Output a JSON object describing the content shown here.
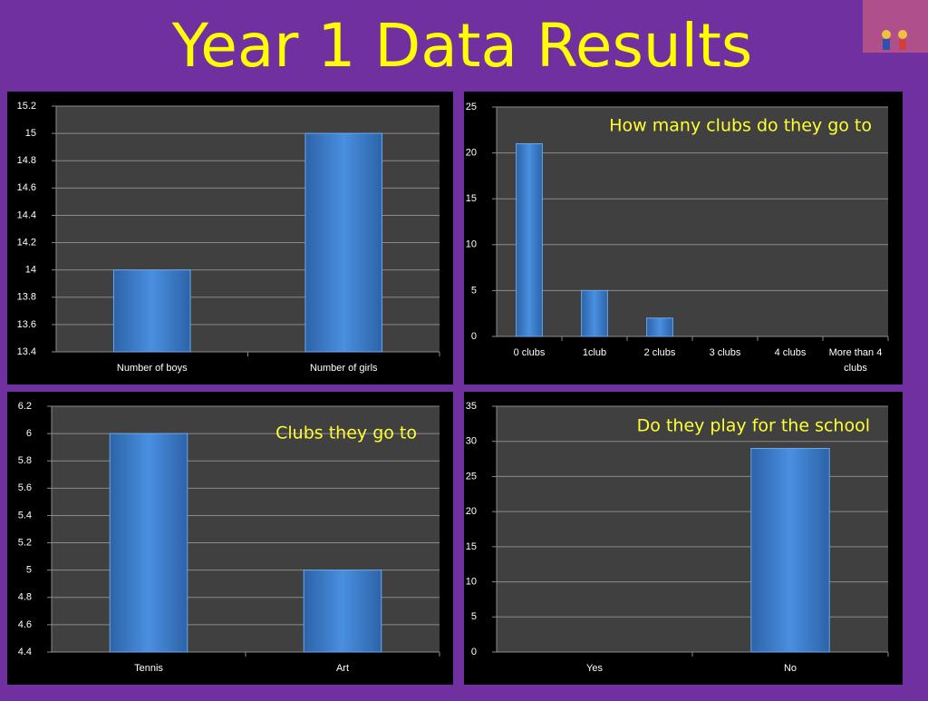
{
  "title": "Year 1 Data Results",
  "chart_data": [
    {
      "type": "bar",
      "categories": [
        "Number of boys",
        "Number of girls"
      ],
      "values": [
        14,
        15
      ],
      "color": "#3d80d2",
      "ylim": [
        13.4,
        15.2
      ],
      "yticks": [
        13.4,
        13.6,
        13.8,
        14,
        14.2,
        14.4,
        14.6,
        14.8,
        15,
        15.2
      ],
      "grid": true
    },
    {
      "type": "bar",
      "title": "How many clubs do they go to",
      "categories": [
        "0 clubs",
        "1club",
        "2 clubs",
        "3 clubs",
        "4 clubs",
        "More than 4 clubs"
      ],
      "values": [
        21,
        5,
        2,
        0,
        0,
        0
      ],
      "color": "#3d80d2",
      "ylim": [
        0,
        25
      ],
      "yticks": [
        0,
        5,
        10,
        15,
        20,
        25
      ],
      "grid": true
    },
    {
      "type": "bar",
      "title": "Clubs they go to",
      "categories": [
        "Tennis",
        "Art"
      ],
      "values": [
        6,
        5
      ],
      "color": "#3d80d2",
      "ylim": [
        4.4,
        6.2
      ],
      "yticks": [
        4.4,
        4.6,
        4.8,
        5,
        5.2,
        5.4,
        5.6,
        5.8,
        6,
        6.2
      ],
      "grid": true
    },
    {
      "type": "bar",
      "title": "Do they play  for the school",
      "categories": [
        "Yes",
        "No"
      ],
      "values": [
        0,
        29
      ],
      "color": "#3d80d2",
      "ylim": [
        0,
        35
      ],
      "yticks": [
        0,
        5,
        10,
        15,
        20,
        25,
        30,
        35
      ],
      "grid": true
    }
  ]
}
